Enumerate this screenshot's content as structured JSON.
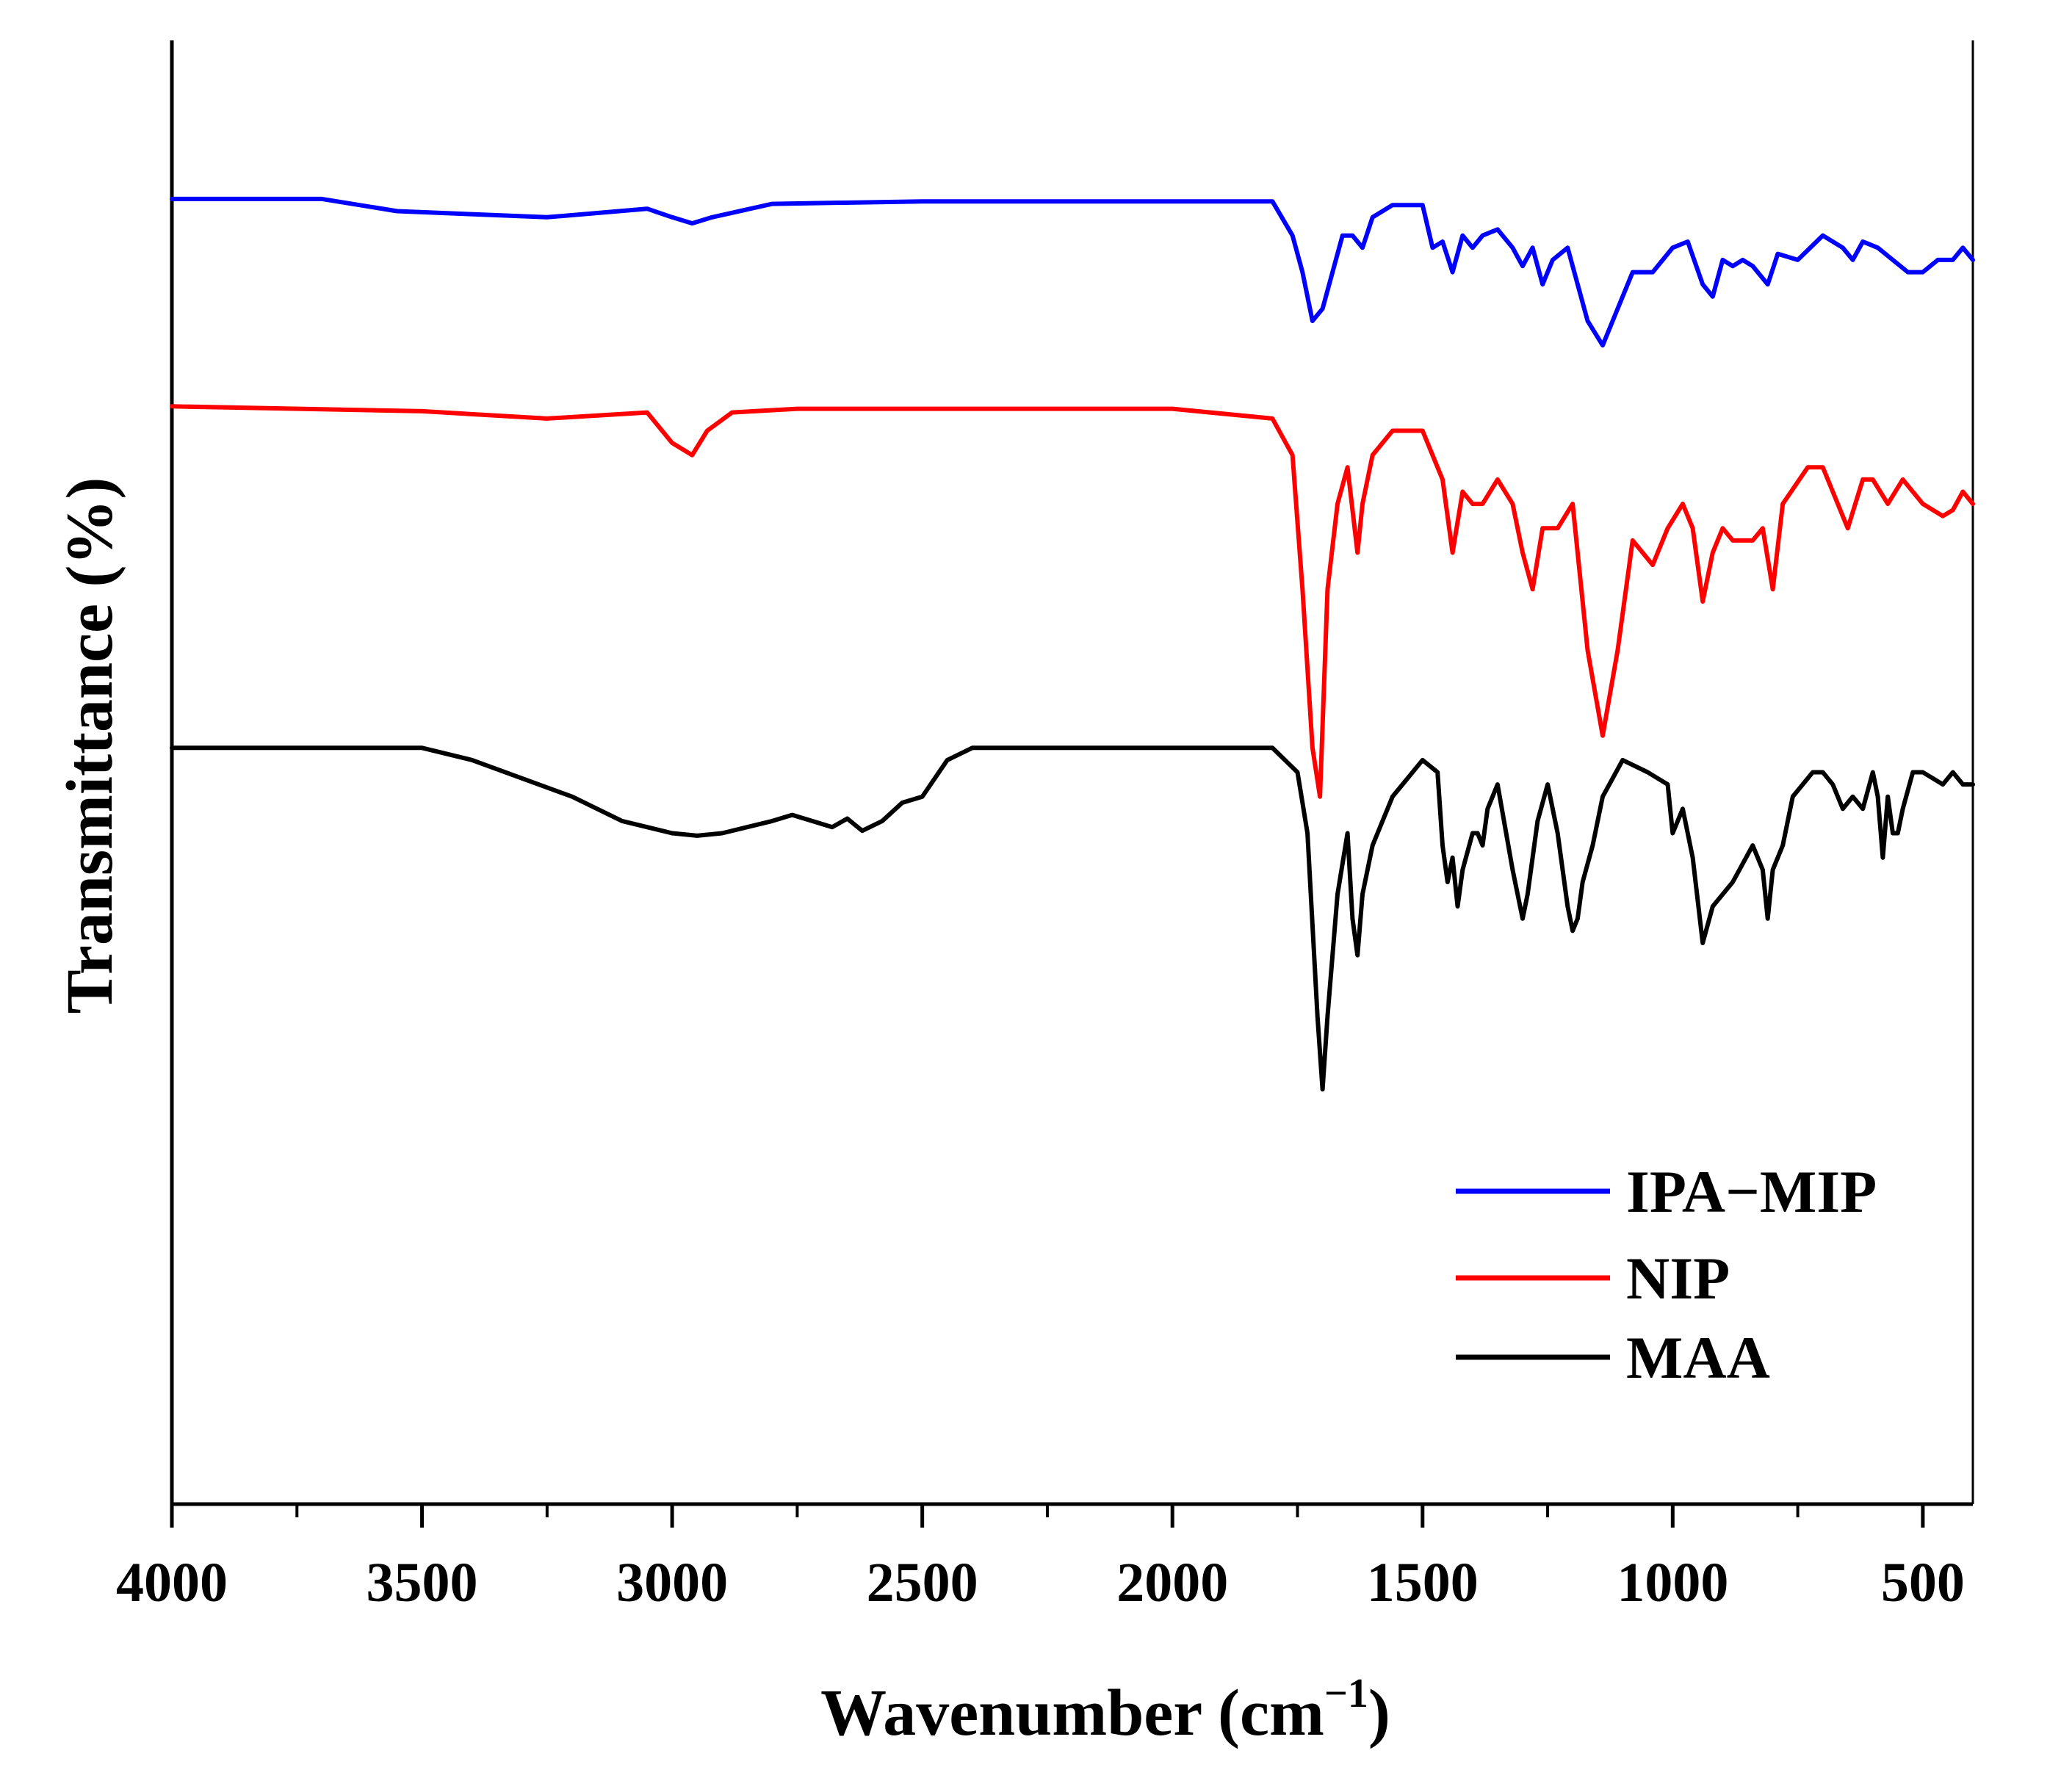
{
  "chart_data": {
    "type": "line",
    "title": "",
    "xlabel": "Wavenumber (cm",
    "xlabel_sup": "−1",
    "xlabel_end": ")",
    "ylabel": "Transmittance (%)",
    "xlim": [
      4000,
      400
    ],
    "ylim": [
      -0.2,
      1.0
    ],
    "x_reversed": true,
    "y_ticks_labeled": false,
    "xticks": [
      4000,
      3500,
      3000,
      2500,
      2000,
      1500,
      1000,
      500
    ],
    "xtick_labels": [
      "4000",
      "3500",
      "3000",
      "2500",
      "2000",
      "1500",
      "1000",
      "500"
    ],
    "legend_position": "lower-right",
    "series": [
      {
        "name": "IPA−MIP",
        "color": "#0000ff",
        "x": [
          4000,
          3700,
          3550,
          3250,
          3050,
          3000,
          2960,
          2920,
          2800,
          2500,
          2000,
          1800,
          1760,
          1740,
          1720,
          1700,
          1680,
          1660,
          1640,
          1620,
          1600,
          1560,
          1500,
          1480,
          1460,
          1440,
          1420,
          1400,
          1380,
          1350,
          1320,
          1300,
          1280,
          1260,
          1240,
          1210,
          1190,
          1170,
          1140,
          1110,
          1080,
          1040,
          1000,
          970,
          940,
          920,
          900,
          880,
          860,
          840,
          810,
          790,
          750,
          700,
          660,
          640,
          620,
          590,
          560,
          530,
          500,
          470,
          440,
          420,
          400
        ],
        "y": [
          0.87,
          0.87,
          0.86,
          0.855,
          0.862,
          0.855,
          0.85,
          0.855,
          0.866,
          0.868,
          0.868,
          0.868,
          0.84,
          0.81,
          0.77,
          0.78,
          0.81,
          0.84,
          0.84,
          0.83,
          0.855,
          0.865,
          0.865,
          0.83,
          0.835,
          0.81,
          0.84,
          0.83,
          0.84,
          0.845,
          0.83,
          0.815,
          0.83,
          0.8,
          0.82,
          0.83,
          0.8,
          0.77,
          0.75,
          0.78,
          0.81,
          0.81,
          0.83,
          0.835,
          0.8,
          0.79,
          0.82,
          0.815,
          0.82,
          0.815,
          0.8,
          0.825,
          0.82,
          0.84,
          0.83,
          0.82,
          0.835,
          0.83,
          0.82,
          0.81,
          0.81,
          0.82,
          0.82,
          0.83,
          0.82
        ]
      },
      {
        "name": "NIP",
        "color": "#ff0000",
        "x": [
          4000,
          3500,
          3250,
          3050,
          3000,
          2960,
          2930,
          2880,
          2750,
          2000,
          1800,
          1760,
          1740,
          1720,
          1705,
          1690,
          1670,
          1650,
          1630,
          1620,
          1600,
          1560,
          1500,
          1480,
          1460,
          1440,
          1420,
          1400,
          1380,
          1350,
          1320,
          1300,
          1280,
          1260,
          1230,
          1200,
          1170,
          1140,
          1110,
          1080,
          1040,
          1010,
          980,
          960,
          940,
          920,
          900,
          880,
          840,
          820,
          800,
          780,
          730,
          700,
          660,
          650,
          620,
          600,
          570,
          540,
          500,
          460,
          440,
          420,
          400
        ],
        "y": [
          0.7,
          0.696,
          0.69,
          0.695,
          0.67,
          0.66,
          0.68,
          0.695,
          0.698,
          0.698,
          0.69,
          0.66,
          0.55,
          0.42,
          0.38,
          0.55,
          0.62,
          0.65,
          0.58,
          0.62,
          0.66,
          0.68,
          0.68,
          0.66,
          0.64,
          0.58,
          0.63,
          0.62,
          0.62,
          0.64,
          0.62,
          0.58,
          0.55,
          0.6,
          0.6,
          0.62,
          0.5,
          0.43,
          0.5,
          0.59,
          0.57,
          0.6,
          0.62,
          0.6,
          0.54,
          0.58,
          0.6,
          0.59,
          0.59,
          0.6,
          0.55,
          0.62,
          0.65,
          0.65,
          0.61,
          0.6,
          0.64,
          0.64,
          0.62,
          0.64,
          0.62,
          0.61,
          0.615,
          0.63,
          0.62
        ]
      },
      {
        "name": "MAA",
        "color": "#000000",
        "x": [
          4000,
          3500,
          3400,
          3200,
          3100,
          3000,
          2950,
          2900,
          2850,
          2800,
          2760,
          2720,
          2680,
          2650,
          2620,
          2580,
          2540,
          2500,
          2450,
          2400,
          2000,
          1800,
          1750,
          1730,
          1710,
          1700,
          1690,
          1670,
          1650,
          1640,
          1630,
          1620,
          1600,
          1560,
          1500,
          1470,
          1460,
          1450,
          1440,
          1430,
          1420,
          1400,
          1390,
          1380,
          1370,
          1350,
          1320,
          1300,
          1290,
          1280,
          1270,
          1250,
          1230,
          1210,
          1200,
          1190,
          1180,
          1160,
          1140,
          1100,
          1050,
          1010,
          1000,
          980,
          960,
          940,
          920,
          880,
          840,
          820,
          810,
          800,
          780,
          760,
          720,
          700,
          680,
          660,
          640,
          620,
          600,
          590,
          580,
          570,
          560,
          550,
          540,
          520,
          500,
          460,
          440,
          420,
          400
        ],
        "y": [
          0.42,
          0.42,
          0.41,
          0.38,
          0.36,
          0.35,
          0.348,
          0.35,
          0.355,
          0.36,
          0.365,
          0.36,
          0.355,
          0.362,
          0.352,
          0.36,
          0.375,
          0.38,
          0.41,
          0.42,
          0.42,
          0.42,
          0.4,
          0.35,
          0.2,
          0.14,
          0.2,
          0.3,
          0.35,
          0.28,
          0.25,
          0.3,
          0.34,
          0.38,
          0.41,
          0.4,
          0.34,
          0.31,
          0.33,
          0.29,
          0.32,
          0.35,
          0.35,
          0.34,
          0.37,
          0.39,
          0.32,
          0.28,
          0.3,
          0.33,
          0.36,
          0.39,
          0.35,
          0.29,
          0.27,
          0.28,
          0.31,
          0.34,
          0.38,
          0.41,
          0.4,
          0.39,
          0.35,
          0.37,
          0.33,
          0.26,
          0.29,
          0.31,
          0.34,
          0.32,
          0.28,
          0.32,
          0.34,
          0.38,
          0.4,
          0.4,
          0.39,
          0.37,
          0.38,
          0.37,
          0.4,
          0.38,
          0.33,
          0.38,
          0.35,
          0.35,
          0.37,
          0.4,
          0.4,
          0.39,
          0.4,
          0.39,
          0.39
        ]
      }
    ]
  }
}
